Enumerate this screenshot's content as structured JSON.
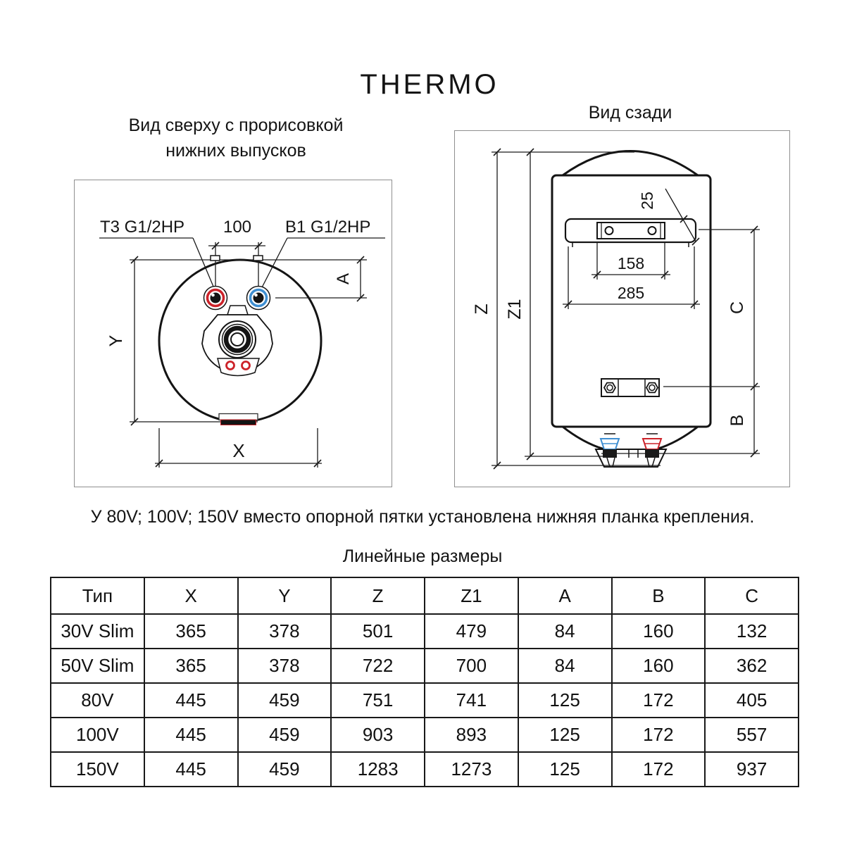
{
  "title": "THERMO",
  "top_view": {
    "caption_line1": "Вид сверху с прорисовкой",
    "caption_line2": "нижних выпусков",
    "port_left_label": "T3 G1/2HP",
    "port_right_label": "B1 G1/2HP",
    "dim_ports_spacing": "100",
    "dim_a": "A",
    "dim_x": "X",
    "dim_y": "Y"
  },
  "back_view": {
    "caption": "Вид сзади",
    "dim_bracket_height": "25",
    "dim_holes_spacing": "158",
    "dim_bracket_width": "285",
    "dim_z": "Z",
    "dim_z1": "Z1",
    "dim_c": "C",
    "dim_b": "B"
  },
  "note": "У 80V; 100V; 150V вместо опорной пятки установлена нижняя планка крепления.",
  "table": {
    "title": "Линейные размеры",
    "headers": [
      "Тип",
      "X",
      "Y",
      "Z",
      "Z1",
      "A",
      "B",
      "C"
    ],
    "rows": [
      [
        "30V Slim",
        "365",
        "378",
        "501",
        "479",
        "84",
        "160",
        "132"
      ],
      [
        "50V Slim",
        "365",
        "378",
        "722",
        "700",
        "84",
        "160",
        "362"
      ],
      [
        "80V",
        "445",
        "459",
        "751",
        "741",
        "125",
        "172",
        "405"
      ],
      [
        "100V",
        "445",
        "459",
        "903",
        "893",
        "125",
        "172",
        "557"
      ],
      [
        "150V",
        "445",
        "459",
        "1283",
        "1273",
        "125",
        "172",
        "937"
      ]
    ]
  },
  "colors": {
    "hot": "#cc2229",
    "cold": "#3f8fd2",
    "line": "#141414",
    "dim_line": "#1a1a1a",
    "panel_border": "#8f8f8f"
  }
}
